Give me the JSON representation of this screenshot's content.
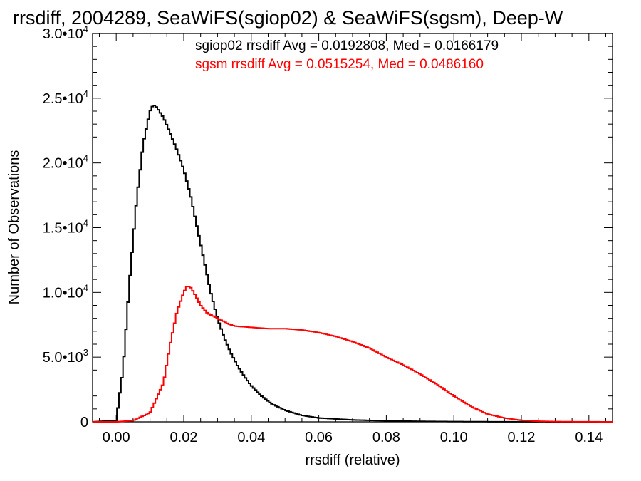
{
  "chart_data": {
    "type": "line",
    "step": true,
    "title": "rrsdiff, 2004289, SeaWiFS(sgiop02) & SeaWiFS(sgsm), Deep-W",
    "xlabel": "rrsdiff (relative)",
    "ylabel": "Number of Observations",
    "xlim": [
      -0.007,
      0.147
    ],
    "ylim": [
      0,
      30000
    ],
    "x_ticks": [
      0.0,
      0.02,
      0.04,
      0.06,
      0.08,
      0.1,
      0.12,
      0.14
    ],
    "x_tick_labels": [
      "0.00",
      "0.02",
      "0.04",
      "0.06",
      "0.08",
      "0.10",
      "0.12",
      "0.14"
    ],
    "y_ticks": [
      0,
      5000,
      10000,
      15000,
      20000,
      25000,
      30000
    ],
    "y_tick_labels": [
      {
        "mant": "0",
        "exp": ""
      },
      {
        "mant": "5.0•10",
        "exp": "3"
      },
      {
        "mant": "1.0•10",
        "exp": "4"
      },
      {
        "mant": "1.5•10",
        "exp": "4"
      },
      {
        "mant": "2.0•10",
        "exp": "4"
      },
      {
        "mant": "2.5•10",
        "exp": "4"
      },
      {
        "mant": "3.0•10",
        "exp": "4"
      }
    ],
    "grid": false,
    "annotations": [
      {
        "text": "sgiop02 rrsdiff Avg = 0.0192808, Med = 0.0166179",
        "color": "#000000"
      },
      {
        "text": "sgsm rrsdiff Avg = 0.0515254, Med = 0.0486160",
        "color": "#ff0000"
      }
    ],
    "series": [
      {
        "color": "#000000",
        "x": [
          -0.007,
          0.0,
          0.002,
          0.004,
          0.006,
          0.008,
          0.01,
          0.011,
          0.012,
          0.014,
          0.016,
          0.018,
          0.02,
          0.022,
          0.024,
          0.026,
          0.028,
          0.03,
          0.032,
          0.034,
          0.036,
          0.038,
          0.04,
          0.043,
          0.046,
          0.05,
          0.055,
          0.06,
          0.07,
          0.08,
          0.09,
          0.1,
          0.11,
          0.12,
          0.147
        ],
        "y": [
          0,
          100,
          4000,
          11000,
          17000,
          21500,
          24000,
          24500,
          24300,
          23500,
          22300,
          21000,
          19500,
          17500,
          15000,
          12500,
          10000,
          8000,
          6500,
          5300,
          4300,
          3500,
          2800,
          2000,
          1400,
          900,
          500,
          300,
          150,
          80,
          40,
          20,
          10,
          5,
          0
        ]
      },
      {
        "color": "#ff0000",
        "x": [
          -0.007,
          0.0,
          0.005,
          0.01,
          0.014,
          0.016,
          0.018,
          0.02,
          0.021,
          0.022,
          0.023,
          0.025,
          0.027,
          0.03,
          0.033,
          0.035,
          0.04,
          0.045,
          0.05,
          0.055,
          0.06,
          0.065,
          0.07,
          0.075,
          0.08,
          0.085,
          0.09,
          0.095,
          0.1,
          0.105,
          0.11,
          0.115,
          0.12,
          0.125,
          0.13,
          0.135,
          0.147
        ],
        "y": [
          0,
          0,
          100,
          700,
          3000,
          6000,
          8500,
          10000,
          10500,
          10400,
          10000,
          9000,
          8400,
          8000,
          7600,
          7400,
          7300,
          7200,
          7200,
          7100,
          6900,
          6600,
          6200,
          5700,
          5000,
          4400,
          3700,
          2900,
          2000,
          1200,
          600,
          300,
          120,
          50,
          20,
          10,
          0
        ]
      }
    ]
  }
}
